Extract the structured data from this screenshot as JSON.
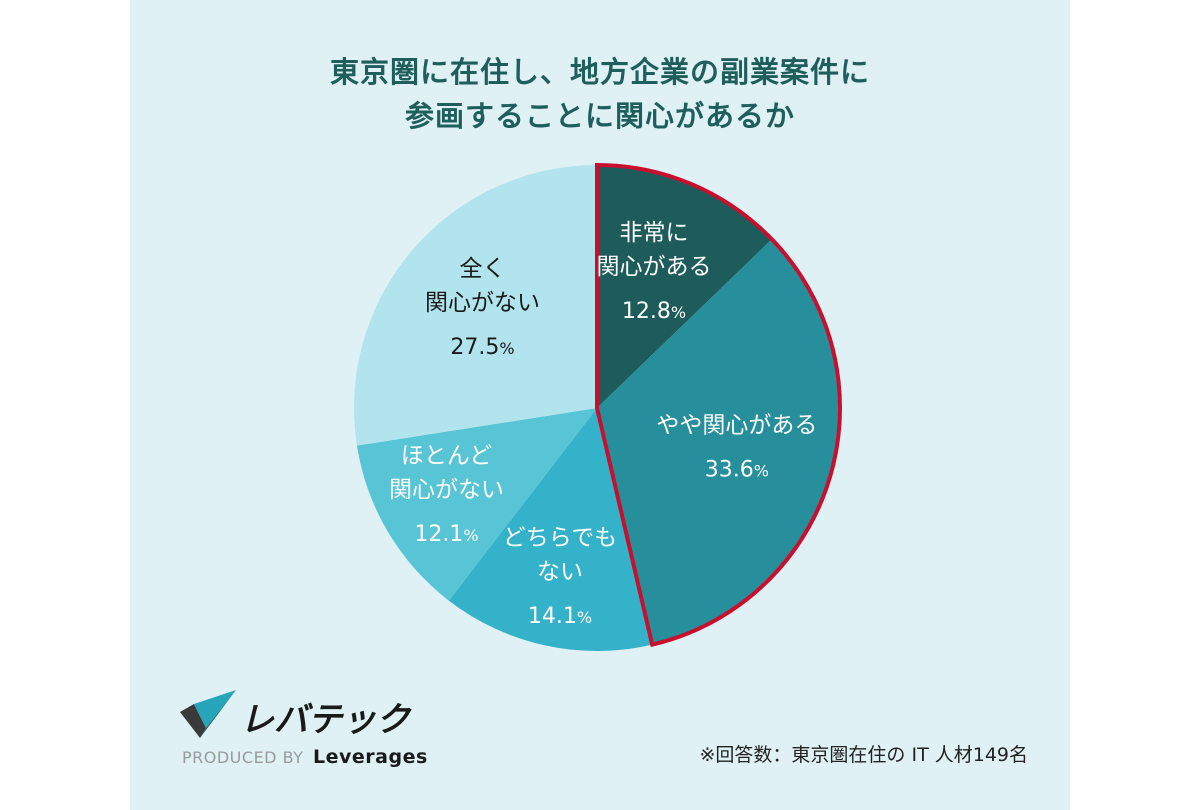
{
  "chart_data": {
    "type": "pie",
    "title_lines": [
      "東京圏に在住し、地方企業の副業案件に",
      "参画することに関心があるか"
    ],
    "unit": "%",
    "slices": [
      {
        "label_lines": [
          "非常に",
          "関心がある"
        ],
        "value": 12.8,
        "value_text": "12.8",
        "color": "#1e5c5c",
        "highlighted": true
      },
      {
        "label_lines": [
          "やや関心がある"
        ],
        "value": 33.6,
        "value_text": "33.6",
        "color": "#268f9b",
        "highlighted": true
      },
      {
        "label_lines": [
          "どちらでも",
          "ない"
        ],
        "value": 14.1,
        "value_text": "14.1",
        "color": "#33b2ca",
        "highlighted": false
      },
      {
        "label_lines": [
          "ほとんど",
          "関心がない"
        ],
        "value": 12.1,
        "value_text": "12.1",
        "color": "#58c5d6",
        "highlighted": false
      },
      {
        "label_lines": [
          "全く",
          "関心がない"
        ],
        "value": 27.5,
        "value_text": "27.5",
        "color": "#b2e4ee",
        "highlighted": false
      }
    ],
    "start_angle": "12 o'clock, clockwise",
    "highlight_color": "#c8102e"
  },
  "logo": {
    "brand": "レバテック",
    "produced_by": "PRODUCED BY",
    "company": "Leverages"
  },
  "footnote": "※回答数：東京圏在住の IT 人材149名"
}
